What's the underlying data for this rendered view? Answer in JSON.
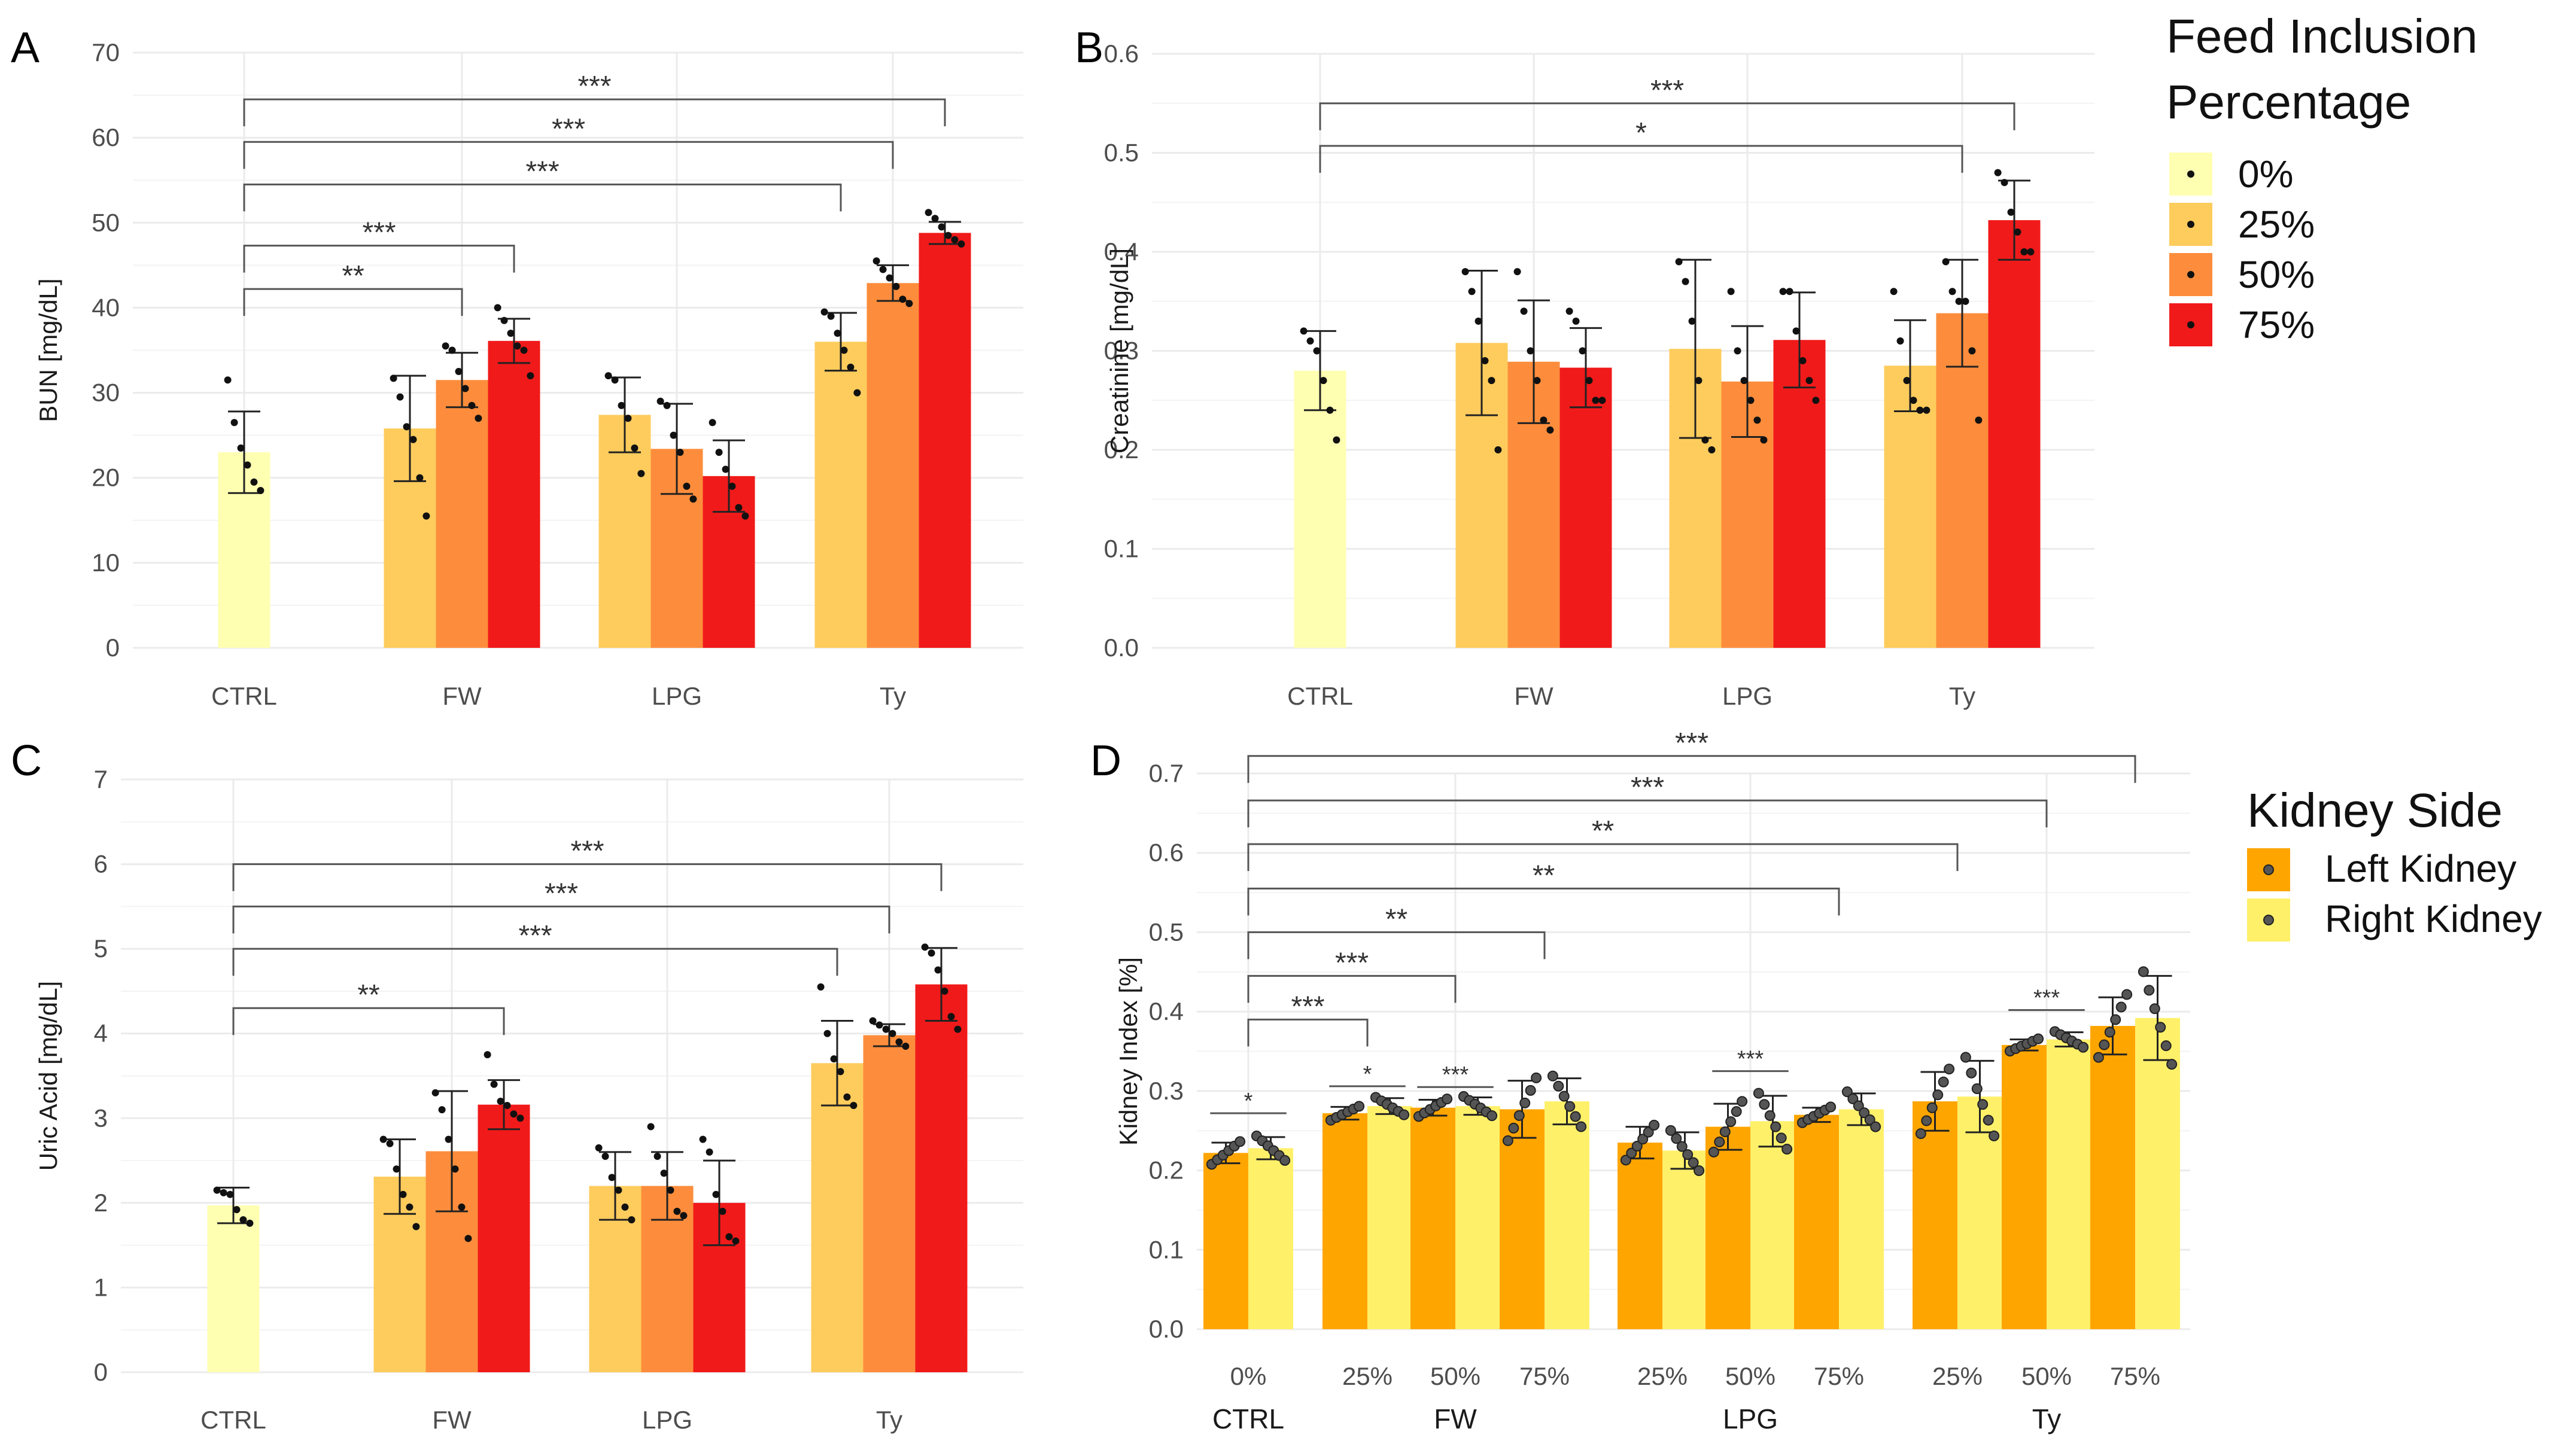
{
  "legend_inclusion": {
    "title_line1": "Feed Inclusion",
    "title_line2": "Percentage",
    "items": [
      {
        "label": "0%",
        "color": "#FFFFB2"
      },
      {
        "label": "25%",
        "color": "#FECC5C"
      },
      {
        "label": "50%",
        "color": "#FD8D3C"
      },
      {
        "label": "75%",
        "color": "#F11A1A"
      }
    ]
  },
  "legend_side": {
    "title": "Kidney  Side",
    "items": [
      {
        "label": "Left Kidney",
        "color": "#FFA500"
      },
      {
        "label": "Right Kidney",
        "color": "#FFF06A"
      }
    ]
  },
  "chart_data": [
    {
      "panel": "A",
      "type": "bar",
      "ylabel": "BUN [mg/dL]",
      "ylim": [
        0,
        70
      ],
      "yticks": [
        0,
        10,
        20,
        30,
        40,
        50,
        60,
        70
      ],
      "groups": [
        "CTRL",
        "FW",
        "LPG",
        "Ty"
      ],
      "bars": [
        {
          "group": "CTRL",
          "level": "0%",
          "mean": 23,
          "sd": 4.8,
          "points": [
            31.5,
            26.5,
            23.5,
            21.5,
            19.5,
            18.5
          ]
        },
        {
          "group": "FW",
          "level": "25%",
          "mean": 25.8,
          "sd": 6.2,
          "points": [
            31.7,
            29.5,
            26,
            24.5,
            20,
            15.5
          ]
        },
        {
          "group": "FW",
          "level": "50%",
          "mean": 31.5,
          "sd": 3.2,
          "points": [
            35.5,
            35,
            32.5,
            30.5,
            28.5,
            27
          ]
        },
        {
          "group": "FW",
          "level": "75%",
          "mean": 36.1,
          "sd": 2.6,
          "points": [
            40,
            38.5,
            37,
            35.5,
            35,
            32
          ]
        },
        {
          "group": "LPG",
          "level": "25%",
          "mean": 27.4,
          "sd": 4.4,
          "points": [
            32,
            31.5,
            28.5,
            27,
            23.5,
            20.5
          ]
        },
        {
          "group": "LPG",
          "level": "50%",
          "mean": 23.4,
          "sd": 5.3,
          "points": [
            29,
            28.5,
            25,
            23,
            19,
            17.5
          ]
        },
        {
          "group": "LPG",
          "level": "75%",
          "mean": 20.2,
          "sd": 4.2,
          "points": [
            26.5,
            23,
            21,
            19,
            16.5,
            15.5
          ]
        },
        {
          "group": "Ty",
          "level": "25%",
          "mean": 36.0,
          "sd": 3.4,
          "points": [
            39.5,
            39,
            37,
            35,
            33,
            30
          ]
        },
        {
          "group": "Ty",
          "level": "50%",
          "mean": 42.9,
          "sd": 2.1,
          "points": [
            45.5,
            44.5,
            43.5,
            42.5,
            41,
            40.5
          ]
        },
        {
          "group": "Ty",
          "level": "75%",
          "mean": 48.8,
          "sd": 1.3,
          "points": [
            51.2,
            50.5,
            49.5,
            48.5,
            48,
            47.5
          ]
        }
      ],
      "brackets": [
        {
          "from": "CTRL",
          "to": "Ty-75%",
          "label": "***",
          "y": 64.5
        },
        {
          "from": "CTRL",
          "to": "Ty-50%",
          "label": "***",
          "y": 59.5
        },
        {
          "from": "CTRL",
          "to": "Ty-25%",
          "label": "***",
          "y": 54.5
        },
        {
          "from": "CTRL",
          "to": "FW-75%",
          "label": "***",
          "y": 47.3
        },
        {
          "from": "CTRL",
          "to": "FW-50%",
          "label": "**",
          "y": 42.2
        }
      ]
    },
    {
      "panel": "B",
      "type": "bar",
      "ylabel": "Creatinine [mg/dL]",
      "ylim": [
        0,
        0.6
      ],
      "yticks": [
        "0.0",
        "0.1",
        "0.2",
        "0.3",
        "0.4",
        "0.5",
        "0.6"
      ],
      "groups": [
        "CTRL",
        "FW",
        "LPG",
        "Ty"
      ],
      "bars": [
        {
          "group": "CTRL",
          "level": "0%",
          "mean": 0.28,
          "sd": 0.04,
          "points": [
            0.32,
            0.31,
            0.3,
            0.27,
            0.24,
            0.21
          ]
        },
        {
          "group": "FW",
          "level": "25%",
          "mean": 0.308,
          "sd": 0.073,
          "points": [
            0.38,
            0.36,
            0.33,
            0.29,
            0.27,
            0.2
          ]
        },
        {
          "group": "FW",
          "level": "50%",
          "mean": 0.289,
          "sd": 0.062,
          "points": [
            0.38,
            0.34,
            0.3,
            0.27,
            0.23,
            0.22
          ]
        },
        {
          "group": "FW",
          "level": "75%",
          "mean": 0.283,
          "sd": 0.04,
          "points": [
            0.34,
            0.33,
            0.3,
            0.27,
            0.25,
            0.25
          ]
        },
        {
          "group": "LPG",
          "level": "25%",
          "mean": 0.302,
          "sd": 0.09,
          "points": [
            0.39,
            0.37,
            0.33,
            0.27,
            0.21,
            0.2
          ]
        },
        {
          "group": "LPG",
          "level": "50%",
          "mean": 0.269,
          "sd": 0.056,
          "points": [
            0.36,
            0.3,
            0.27,
            0.25,
            0.23,
            0.21
          ]
        },
        {
          "group": "LPG",
          "level": "75%",
          "mean": 0.311,
          "sd": 0.048,
          "points": [
            0.36,
            0.36,
            0.32,
            0.29,
            0.27,
            0.25
          ]
        },
        {
          "group": "Ty",
          "level": "25%",
          "mean": 0.285,
          "sd": 0.046,
          "points": [
            0.36,
            0.31,
            0.27,
            0.25,
            0.24,
            0.24
          ]
        },
        {
          "group": "Ty",
          "level": "50%",
          "mean": 0.338,
          "sd": 0.054,
          "points": [
            0.39,
            0.36,
            0.35,
            0.35,
            0.3,
            0.23
          ]
        },
        {
          "group": "Ty",
          "level": "75%",
          "mean": 0.432,
          "sd": 0.04,
          "points": [
            0.48,
            0.47,
            0.44,
            0.42,
            0.4,
            0.4
          ]
        }
      ],
      "brackets": [
        {
          "from": "CTRL",
          "to": "Ty-75%",
          "label": "***",
          "y": 0.55
        },
        {
          "from": "CTRL",
          "to": "Ty-50%",
          "label": "*",
          "y": 0.507
        }
      ]
    },
    {
      "panel": "C",
      "type": "bar",
      "ylabel": "Uric Acid [mg/dL]",
      "ylim": [
        0,
        7
      ],
      "yticks": [
        0,
        1,
        2,
        3,
        4,
        5,
        6,
        7
      ],
      "groups": [
        "CTRL",
        "FW",
        "LPG",
        "Ty"
      ],
      "bars": [
        {
          "group": "CTRL",
          "level": "0%",
          "mean": 1.97,
          "sd": 0.21,
          "points": [
            2.15,
            2.12,
            2.1,
            1.92,
            1.8,
            1.76
          ]
        },
        {
          "group": "FW",
          "level": "25%",
          "mean": 2.31,
          "sd": 0.44,
          "points": [
            2.75,
            2.7,
            2.4,
            2.1,
            1.95,
            1.72
          ]
        },
        {
          "group": "FW",
          "level": "50%",
          "mean": 2.61,
          "sd": 0.71,
          "points": [
            3.3,
            3.1,
            2.75,
            2.4,
            1.95,
            1.58
          ]
        },
        {
          "group": "FW",
          "level": "75%",
          "mean": 3.16,
          "sd": 0.29,
          "points": [
            3.75,
            3.4,
            3.2,
            3.15,
            3.05,
            3.0
          ]
        },
        {
          "group": "LPG",
          "level": "25%",
          "mean": 2.2,
          "sd": 0.4,
          "points": [
            2.65,
            2.55,
            2.3,
            2.15,
            1.95,
            1.8
          ]
        },
        {
          "group": "LPG",
          "level": "50%",
          "mean": 2.2,
          "sd": 0.4,
          "points": [
            2.9,
            2.55,
            2.35,
            2.15,
            1.9,
            1.85
          ]
        },
        {
          "group": "LPG",
          "level": "75%",
          "mean": 2.0,
          "sd": 0.5,
          "points": [
            2.75,
            2.6,
            2.1,
            1.9,
            1.6,
            1.55
          ]
        },
        {
          "group": "Ty",
          "level": "25%",
          "mean": 3.65,
          "sd": 0.5,
          "points": [
            4.55,
            4.0,
            3.7,
            3.55,
            3.25,
            3.15
          ]
        },
        {
          "group": "Ty",
          "level": "50%",
          "mean": 3.98,
          "sd": 0.13,
          "points": [
            4.15,
            4.1,
            4.05,
            4.0,
            3.9,
            3.85
          ]
        },
        {
          "group": "Ty",
          "level": "75%",
          "mean": 4.58,
          "sd": 0.43,
          "points": [
            5.02,
            4.95,
            4.75,
            4.5,
            4.2,
            4.05
          ]
        }
      ],
      "brackets": [
        {
          "from": "CTRL",
          "to": "Ty-75%",
          "label": "***",
          "y": 6.0
        },
        {
          "from": "CTRL",
          "to": "Ty-50%",
          "label": "***",
          "y": 5.5
        },
        {
          "from": "CTRL",
          "to": "Ty-25%",
          "label": "***",
          "y": 5.0
        },
        {
          "from": "CTRL",
          "to": "FW-75%",
          "label": "**",
          "y": 4.3
        }
      ]
    },
    {
      "panel": "D",
      "type": "bar",
      "ylabel": "Kidney Index [%]",
      "ylim": [
        0,
        0.7
      ],
      "yticks": [
        "0.0",
        "0.1",
        "0.2",
        "0.3",
        "0.4",
        "0.5",
        "0.6",
        "0.7"
      ],
      "groups": [
        "CTRL",
        "FW",
        "LPG",
        "Ty"
      ],
      "categories": [
        {
          "group": "CTRL",
          "level": "0%",
          "left": 0.222,
          "left_sd": 0.013,
          "right": 0.228,
          "right_sd": 0.014
        },
        {
          "group": "FW",
          "level": "25%",
          "left": 0.272,
          "left_sd": 0.008,
          "right": 0.281,
          "right_sd": 0.01
        },
        {
          "group": "FW",
          "level": "50%",
          "left": 0.279,
          "left_sd": 0.01,
          "right": 0.281,
          "right_sd": 0.011
        },
        {
          "group": "FW",
          "level": "75%",
          "left": 0.277,
          "left_sd": 0.036,
          "right": 0.287,
          "right_sd": 0.029
        },
        {
          "group": "LPG",
          "level": "25%",
          "left": 0.235,
          "left_sd": 0.02,
          "right": 0.225,
          "right_sd": 0.023
        },
        {
          "group": "LPG",
          "level": "50%",
          "left": 0.255,
          "left_sd": 0.029,
          "right": 0.262,
          "right_sd": 0.032
        },
        {
          "group": "LPG",
          "level": "75%",
          "left": 0.27,
          "left_sd": 0.009,
          "right": 0.277,
          "right_sd": 0.02
        },
        {
          "group": "Ty",
          "level": "25%",
          "left": 0.287,
          "left_sd": 0.037,
          "right": 0.293,
          "right_sd": 0.045
        },
        {
          "group": "Ty",
          "level": "50%",
          "left": 0.358,
          "left_sd": 0.007,
          "right": 0.365,
          "right_sd": 0.009
        },
        {
          "group": "Ty",
          "level": "75%",
          "left": 0.382,
          "left_sd": 0.036,
          "right": 0.392,
          "right_sd": 0.053
        }
      ],
      "brackets": [
        {
          "from": "CTRL-0%",
          "to": "Ty-75%",
          "label": "***",
          "y": 0.722
        },
        {
          "from": "CTRL-0%",
          "to": "Ty-50%",
          "label": "***",
          "y": 0.666
        },
        {
          "from": "CTRL-0%",
          "to": "Ty-25%",
          "label": "**",
          "y": 0.611
        },
        {
          "from": "CTRL-0%",
          "to": "LPG-75%",
          "label": "**",
          "y": 0.555
        },
        {
          "from": "CTRL-0%",
          "to": "FW-75%",
          "label": "**",
          "y": 0.5
        },
        {
          "from": "CTRL-0%",
          "to": "FW-50%",
          "label": "***",
          "y": 0.445
        },
        {
          "from": "CTRL-0%",
          "to": "FW-25%",
          "label": "***",
          "y": 0.39
        }
      ],
      "pair_marks": [
        {
          "category": "CTRL-0%",
          "label": "*",
          "y": 0.272
        },
        {
          "category": "FW-25%",
          "label": "*",
          "y": 0.306
        },
        {
          "category": "FW-50%",
          "label": "***",
          "y": 0.305
        },
        {
          "category": "LPG-50%",
          "label": "***",
          "y": 0.325
        },
        {
          "category": "Ty-50%",
          "label": "***",
          "y": 0.402
        }
      ]
    }
  ]
}
